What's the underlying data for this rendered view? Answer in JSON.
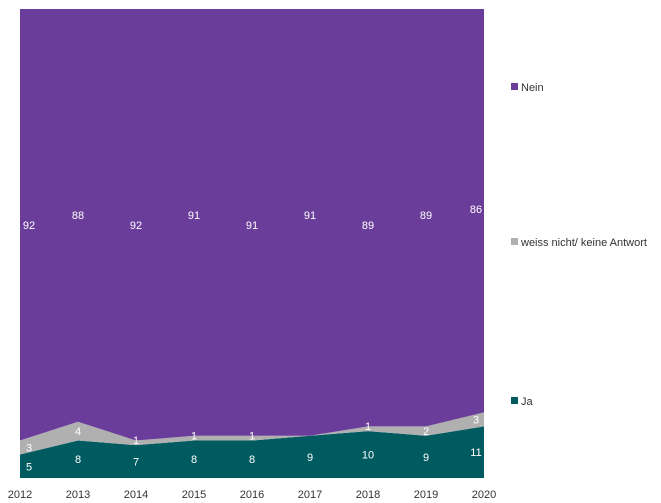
{
  "chart_data": {
    "type": "area",
    "stacked": true,
    "percent": true,
    "categories": [
      "2012",
      "2013",
      "2014",
      "2015",
      "2016",
      "2017",
      "2018",
      "2019",
      "2020"
    ],
    "series": [
      {
        "name": "Ja",
        "color": "#005b61",
        "values": [
          5,
          8,
          7,
          8,
          8,
          9,
          10,
          9,
          11
        ]
      },
      {
        "name": "weiss nicht/ keine Antwort",
        "color": "#b0b0b0",
        "values": [
          3,
          4,
          1,
          1,
          1,
          0,
          1,
          2,
          3
        ]
      },
      {
        "name": "Nein",
        "color": "#6a3d9a",
        "values": [
          92,
          88,
          92,
          91,
          91,
          91,
          89,
          89,
          86
        ]
      }
    ],
    "labels": {
      "Ja": [
        "5",
        "8",
        "7",
        "8",
        "8",
        "9",
        "10",
        "9",
        "11"
      ],
      "weiss nicht/ keine Antwort": [
        "3",
        "4",
        "1",
        "1",
        "1",
        "",
        "1",
        "2",
        "3"
      ],
      "Nein": [
        "92",
        "88",
        "92",
        "91",
        "91",
        "91",
        "89",
        "89",
        "86"
      ]
    },
    "legend": [
      "Nein",
      "weiss nicht/ keine Antwort",
      "Ja"
    ],
    "legend_position": "right",
    "ylim": [
      0,
      100
    ],
    "grid": false
  }
}
